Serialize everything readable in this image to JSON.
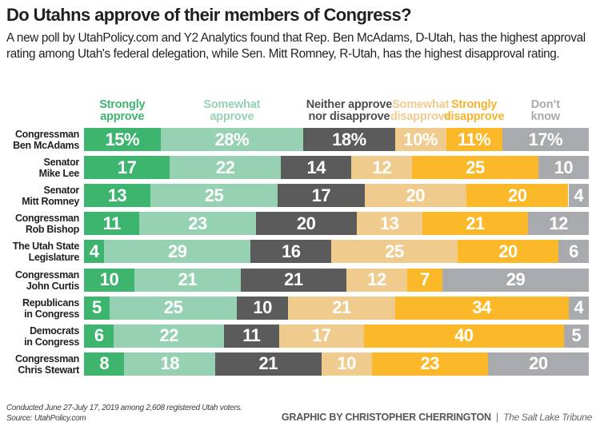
{
  "header": {
    "title": "Do Utahns approve of their members of Congress?",
    "subtitle": "A new poll by UtahPolicy.com and Y2 Analytics found that Rep. Ben McAdams, D-Utah, has the highest approval rating among Utah's federal delegation, while Sen. Mitt Romney, R-Utah, has the highest disapproval rating."
  },
  "chart_data": {
    "type": "bar",
    "orientation": "horizontal",
    "stacked": true,
    "normalized_to": 100,
    "title": "Do Utahns approve of their members of Congress?",
    "xlabel": "",
    "ylabel": "",
    "legend_position": "top",
    "grid": false,
    "categories": [
      "Congressman\nBen McAdams",
      "Senator\nMike Lee",
      "Senator\nMitt Romney",
      "Congressman\nRob Bishop",
      "The Utah State\nLegislature",
      "Congressman\nJohn Curtis",
      "Republicans\nin Congress",
      "Democrats\nin Congress",
      "Congressman\nChris Stewart"
    ],
    "series": [
      {
        "name": "Strongly\napprove",
        "color": "#3db56f",
        "label_color": "#3db56f",
        "values": [
          15,
          17,
          13,
          11,
          4,
          10,
          5,
          6,
          8
        ]
      },
      {
        "name": "Somewhat\napprove",
        "color": "#95d1b2",
        "label_color": "#95d1b2",
        "values": [
          28,
          22,
          25,
          23,
          29,
          21,
          25,
          22,
          18
        ]
      },
      {
        "name": "Neither approve\nnor disapprove",
        "color": "#5b5b5b",
        "label_color": "#4d4d4d",
        "values": [
          18,
          14,
          17,
          20,
          16,
          21,
          10,
          11,
          21
        ]
      },
      {
        "name": "Somewhat\ndisapprove",
        "color": "#f0cb8e",
        "label_color": "#f0cb8e",
        "values": [
          10,
          12,
          20,
          13,
          25,
          12,
          21,
          17,
          10
        ]
      },
      {
        "name": "Strongly\ndisapprove",
        "color": "#fbb829",
        "label_color": "#f7b32b",
        "values": [
          11,
          25,
          20,
          21,
          20,
          7,
          34,
          40,
          23
        ]
      },
      {
        "name": "Don’t\nknow",
        "color": "#a9aaad",
        "label_color": "#a9aaad",
        "values": [
          17,
          10,
          4,
          12,
          6,
          29,
          4,
          5,
          20
        ]
      }
    ],
    "first_row_percent_sign": true
  },
  "footer": {
    "note": "Conducted June 27-July 17, 2019 among 2,608 registered Utah voters.\nSource: UtahPolicy.com",
    "credit": "GRAPHIC BY CHRISTOPHER CHERRINGTON",
    "publisher": "The Salt Lake Tribune"
  }
}
